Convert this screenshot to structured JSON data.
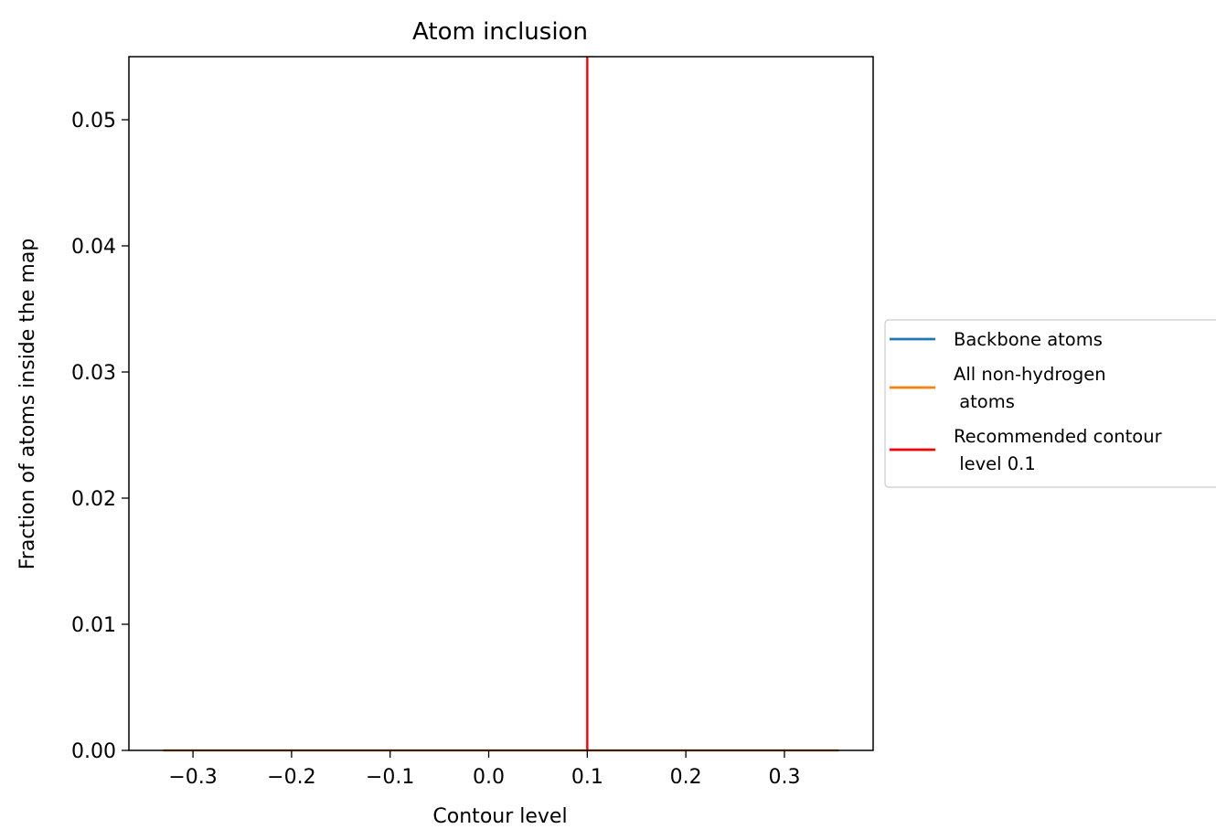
{
  "chart_data": {
    "type": "line",
    "title": "Atom inclusion",
    "xlabel": "Contour level",
    "ylabel": "Fraction of atoms inside the map",
    "xlim": [
      -0.365,
      0.39
    ],
    "ylim": [
      0.0,
      0.055
    ],
    "xticks": [
      -0.3,
      -0.2,
      -0.1,
      0.0,
      0.1,
      0.2,
      0.3
    ],
    "xtick_labels": [
      "−0.3",
      "−0.2",
      "−0.1",
      "0.0",
      "0.1",
      "0.2",
      "0.3"
    ],
    "yticks": [
      0.0,
      0.01,
      0.02,
      0.03,
      0.04,
      0.05
    ],
    "ytick_labels": [
      "0.00",
      "0.01",
      "0.02",
      "0.03",
      "0.04",
      "0.05"
    ],
    "grid": false,
    "legend_position": "outside-right",
    "series": [
      {
        "name": "Backbone atoms",
        "color": "#1f77b4",
        "x": [
          -0.33,
          0.355
        ],
        "y": [
          0.0,
          0.0
        ]
      },
      {
        "name": "All non-hydrogen\n atoms",
        "color": "#ff7f0e",
        "x": [
          -0.33,
          0.355
        ],
        "y": [
          0.0,
          0.0
        ]
      }
    ],
    "vline": {
      "name": "Recommended contour\n level 0.1",
      "x": 0.1,
      "color": "#ff0000"
    },
    "legend": [
      {
        "lines": [
          "Backbone atoms"
        ],
        "color": "#1f77b4"
      },
      {
        "lines": [
          "All non-hydrogen",
          " atoms"
        ],
        "color": "#ff7f0e"
      },
      {
        "lines": [
          "Recommended contour",
          " level 0.1"
        ],
        "color": "#ff0000"
      }
    ]
  }
}
